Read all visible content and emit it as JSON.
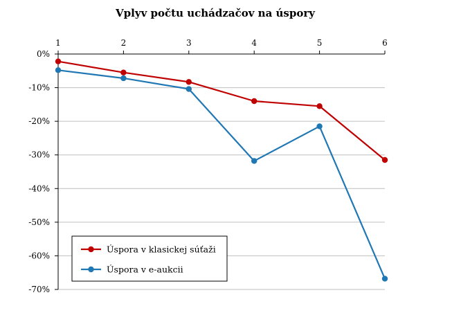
{
  "chart_data": {
    "type": "line",
    "title": "Vplyv počtu uchádzačov na úspory",
    "x": [
      1,
      2,
      3,
      4,
      5,
      6
    ],
    "x_tick_labels": [
      "1",
      "2",
      "3",
      "4",
      "5",
      "6"
    ],
    "x_axis_position": "top",
    "ylim": [
      -0.7,
      0
    ],
    "y_tick_values": [
      0,
      -0.1,
      -0.2,
      -0.3,
      -0.4,
      -0.5,
      -0.6,
      -0.7
    ],
    "y_tick_labels": [
      "0%",
      "-10%",
      "-20%",
      "-30%",
      "-40%",
      "-50%",
      "-60%",
      "-70%"
    ],
    "grid": "horizontal",
    "legend_position": "bottom-left",
    "series": [
      {
        "name": "Úspora v klasickej súťaži",
        "color": "#c00000",
        "values": [
          -0.022,
          -0.055,
          -0.083,
          -0.14,
          -0.155,
          -0.315
        ]
      },
      {
        "name": "Úspora v e-aukcii",
        "color": "#1f77b4",
        "values": [
          -0.048,
          -0.072,
          -0.104,
          -0.318,
          -0.215,
          -0.668
        ]
      }
    ]
  }
}
